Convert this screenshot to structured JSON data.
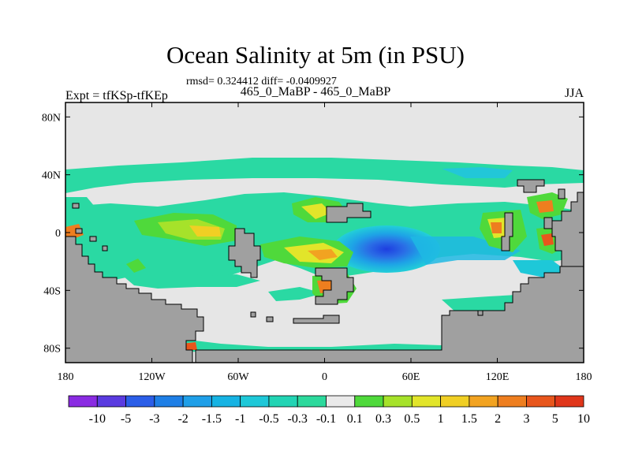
{
  "title": "Ocean Salinity at 5m (in PSU)",
  "stats": "rmsd= 0.324412 diff= -0.0409927",
  "cases": "465_0_MaBP - 465_0_MaBP",
  "left_label": "Expt = tfKSp-tfKEp",
  "right_label": "JJA",
  "axes": {
    "x_ticks": [
      "180",
      "120W",
      "60W",
      "0",
      "60E",
      "120E",
      "180"
    ],
    "y_ticks": [
      "80N",
      "40N",
      "0",
      "40S",
      "80S"
    ]
  },
  "colorbar": {
    "labels": [
      "-10",
      "-5",
      "-3",
      "-2",
      "-1.5",
      "-1",
      "-0.5",
      "-0.3",
      "-0.1",
      "0.1",
      "0.3",
      "0.5",
      "1",
      "1.5",
      "2",
      "3",
      "5",
      "10"
    ],
    "colors": [
      "#8a2be2",
      "#5a3be0",
      "#2b5ee8",
      "#1e7fe6",
      "#1f9fe8",
      "#16b3e3",
      "#1ec8d8",
      "#22d4b4",
      "#2cd99c",
      "#eaeaea",
      "#4fd93b",
      "#a6e22a",
      "#e2e52a",
      "#f0cf24",
      "#f2a321",
      "#ee7e1f",
      "#e8561c",
      "#e0361a"
    ]
  },
  "colors": {
    "land": "#a0a0a0",
    "background": "#e6e6e6",
    "ocean_band": "#2ad9a3"
  }
}
